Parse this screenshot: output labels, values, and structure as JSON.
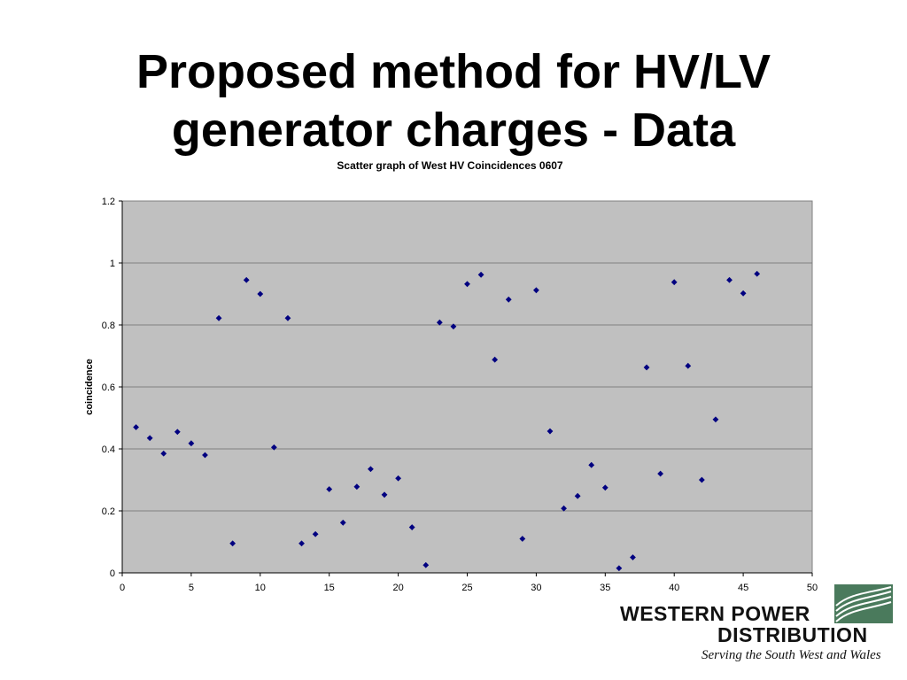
{
  "slide": {
    "title_line1": "Proposed method for HV/LV",
    "title_line2": "generator charges - Data"
  },
  "logo": {
    "line1": "WESTERN POWER",
    "line2": "DISTRIBUTION",
    "tagline": "Serving the South West and Wales",
    "brand_color": "#4a7a5c"
  },
  "chart_data": {
    "type": "scatter",
    "title": "Scatter graph of West HV Coincidences 0607",
    "xlabel": "",
    "ylabel": "coincidence",
    "xlim": [
      0,
      50
    ],
    "ylim": [
      0,
      1.2
    ],
    "x_ticks": [
      "0",
      "5",
      "10",
      "15",
      "20",
      "25",
      "30",
      "35",
      "40",
      "45",
      "50"
    ],
    "y_ticks": [
      "0",
      "0.2",
      "0.4",
      "0.6",
      "0.8",
      "1",
      "1.2"
    ],
    "grid": "horizontal",
    "plot_background": "#c0c0c0",
    "marker_color": "#000080",
    "x": [
      1,
      2,
      3,
      4,
      5,
      6,
      7,
      8,
      9,
      10,
      11,
      12,
      13,
      14,
      15,
      16,
      17,
      18,
      19,
      20,
      21,
      22,
      23,
      24,
      25,
      26,
      27,
      28,
      29,
      30,
      31,
      32,
      33,
      34,
      35,
      36,
      37,
      38,
      39,
      40,
      41,
      42,
      43,
      44,
      45,
      46
    ],
    "y": [
      0.47,
      0.435,
      0.385,
      0.455,
      0.418,
      0.38,
      0.822,
      0.095,
      0.945,
      0.9,
      0.405,
      0.822,
      0.095,
      0.125,
      0.27,
      0.162,
      0.278,
      0.335,
      0.252,
      0.305,
      0.147,
      0.025,
      0.808,
      0.795,
      0.932,
      0.962,
      0.688,
      0.882,
      0.11,
      0.912,
      0.457,
      0.208,
      0.248,
      0.348,
      0.275,
      0.015,
      0.05,
      0.663,
      0.32,
      0.938,
      0.668,
      0.3,
      0.495,
      0.945,
      0.902,
      0.965
    ]
  }
}
